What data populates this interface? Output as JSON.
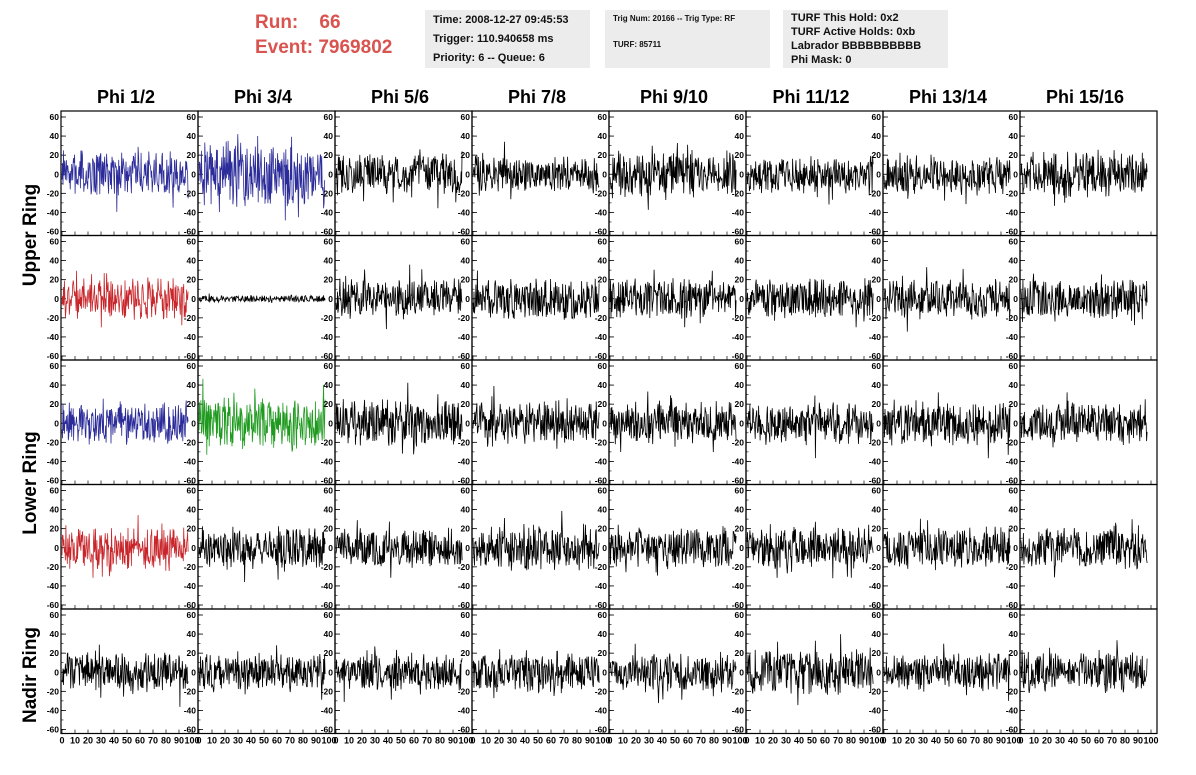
{
  "header": {
    "run_label": "Run:",
    "run_value": "66",
    "event_label": "Event:",
    "event_value": "7969802",
    "time_line": "Time: 2008-12-27 09:45:53",
    "trigger_line": "Trigger: 110.940658 ms",
    "priority_line": "Priority: 6 -- Queue: 6",
    "trig_num_line": "Trig Num: 20166 -- Trig Type: RF",
    "turf_line": "TURF: 85711",
    "turf_this_hold": "TURF This Hold: 0x2",
    "turf_active_holds": "TURF Active Holds: 0xb",
    "labrador": "Labrador BBBBBBBBBB",
    "phi_mask": "Phi Mask: 0"
  },
  "columns": [
    "Phi 1/2",
    "Phi 3/4",
    "Phi 5/6",
    "Phi 7/8",
    "Phi 9/10",
    "Phi 11/12",
    "Phi 13/14",
    "Phi 15/16"
  ],
  "rings": [
    "Upper Ring",
    "Lower Ring",
    "Nadir Ring"
  ],
  "chart_data": {
    "type": "line",
    "ylim": [
      -60,
      60
    ],
    "xlim": [
      0,
      100
    ],
    "y_ticks": [
      -60,
      -40,
      -20,
      0,
      20,
      40,
      60
    ],
    "x_ticks": [
      0,
      10,
      20,
      30,
      40,
      50,
      60,
      70,
      80,
      90,
      100
    ],
    "rows": 5,
    "cols": 8,
    "colors": {
      "default": "#000000",
      "blue": "#2b2b9a",
      "red": "#c8262b",
      "green": "#1e9a1e"
    },
    "panels": [
      [
        {
          "color": "blue",
          "amp": 20
        },
        {
          "color": "blue",
          "amp": 28
        },
        {
          "color": "default",
          "amp": 18
        },
        {
          "color": "default",
          "amp": 16
        },
        {
          "color": "default",
          "amp": 20
        },
        {
          "color": "default",
          "amp": 16
        },
        {
          "color": "default",
          "amp": 17
        },
        {
          "color": "default",
          "amp": 20
        }
      ],
      [
        {
          "color": "red",
          "amp": 18
        },
        {
          "color": "default",
          "amp": 3
        },
        {
          "color": "default",
          "amp": 17
        },
        {
          "color": "default",
          "amp": 18
        },
        {
          "color": "default",
          "amp": 18
        },
        {
          "color": "default",
          "amp": 17
        },
        {
          "color": "default",
          "amp": 17
        },
        {
          "color": "default",
          "amp": 18
        }
      ],
      [
        {
          "color": "blue",
          "amp": 18
        },
        {
          "color": "green",
          "amp": 22
        },
        {
          "color": "default",
          "amp": 20
        },
        {
          "color": "default",
          "amp": 20
        },
        {
          "color": "default",
          "amp": 18
        },
        {
          "color": "default",
          "amp": 18
        },
        {
          "color": "default",
          "amp": 19
        },
        {
          "color": "default",
          "amp": 17
        }
      ],
      [
        {
          "color": "red",
          "amp": 19
        },
        {
          "color": "default",
          "amp": 18
        },
        {
          "color": "default",
          "amp": 17
        },
        {
          "color": "default",
          "amp": 20
        },
        {
          "color": "default",
          "amp": 18
        },
        {
          "color": "default",
          "amp": 18
        },
        {
          "color": "default",
          "amp": 18
        },
        {
          "color": "default",
          "amp": 19
        }
      ],
      [
        {
          "color": "default",
          "amp": 18
        },
        {
          "color": "default",
          "amp": 17
        },
        {
          "color": "default",
          "amp": 16
        },
        {
          "color": "default",
          "amp": 17
        },
        {
          "color": "default",
          "amp": 17
        },
        {
          "color": "default",
          "amp": 20
        },
        {
          "color": "default",
          "amp": 17
        },
        {
          "color": "default",
          "amp": 17
        }
      ]
    ]
  }
}
